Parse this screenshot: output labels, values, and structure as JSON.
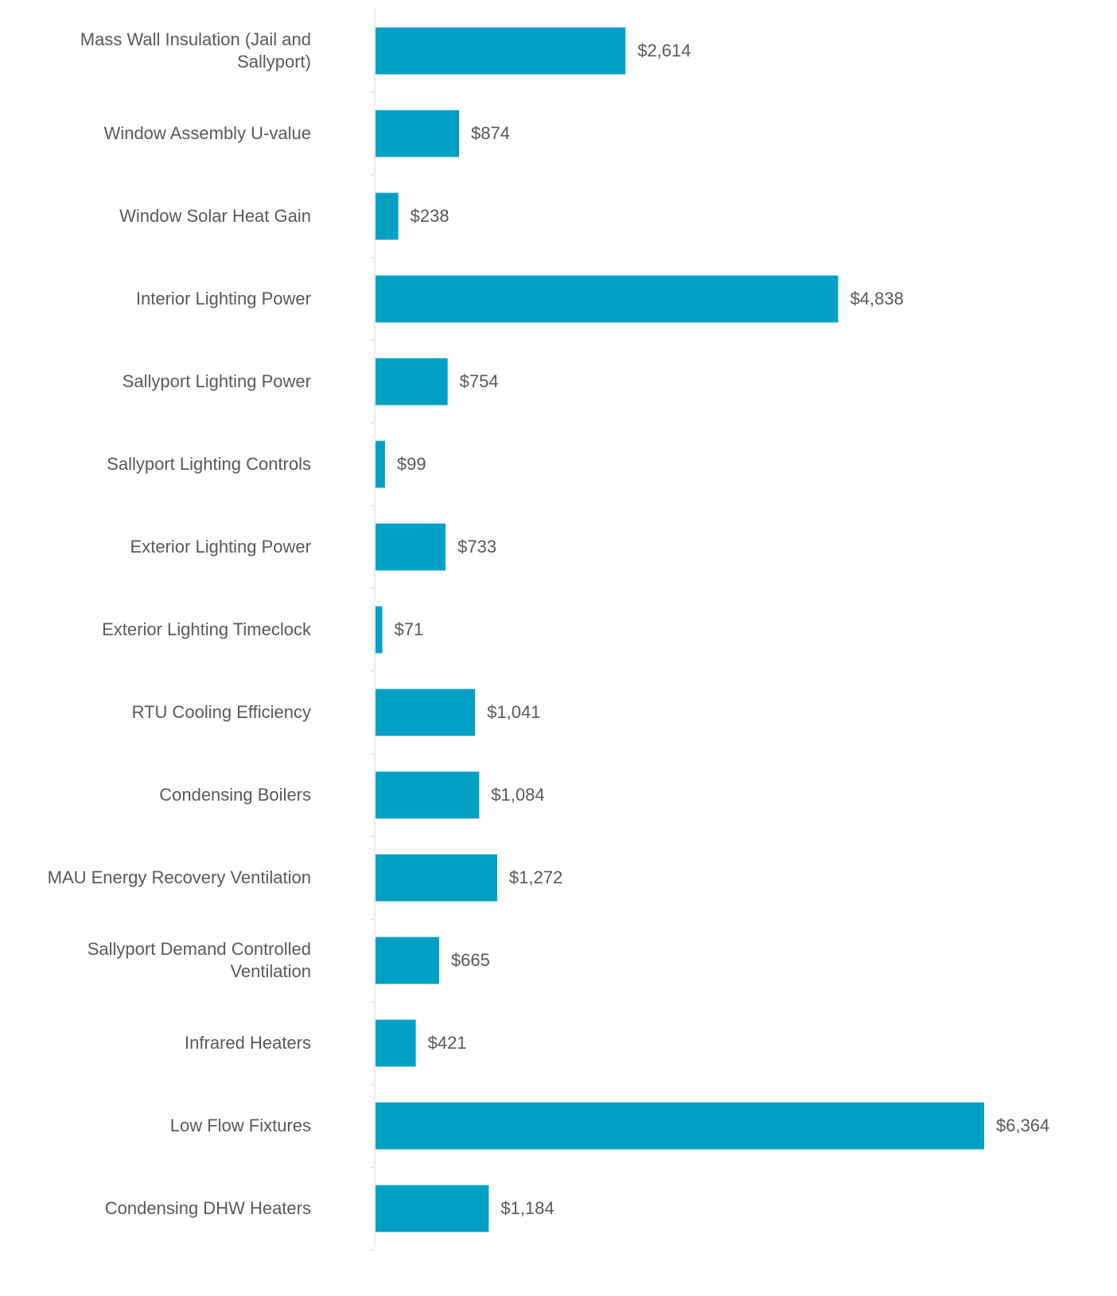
{
  "chart_data": {
    "type": "bar",
    "orientation": "horizontal",
    "categories": [
      "Mass Wall Insulation (Jail and Sallyport)",
      "Window Assembly U-value",
      "Window Solar Heat Gain",
      "Interior Lighting Power",
      "Sallyport Lighting Power",
      "Sallyport Lighting Controls",
      "Exterior Lighting Power",
      "Exterior Lighting Timeclock",
      "RTU Cooling Efficiency",
      "Condensing Boilers",
      "MAU Energy Recovery Ventilation",
      "Sallyport Demand Controlled Ventilation",
      "Infrared Heaters",
      "Low Flow Fixtures",
      "Condensing DHW Heaters"
    ],
    "values": [
      2614,
      874,
      238,
      4838,
      754,
      99,
      733,
      71,
      1041,
      1084,
      1272,
      665,
      421,
      6364,
      1184
    ],
    "value_labels": [
      "$2,614",
      "$874",
      "$238",
      "$4,838",
      "$754",
      "$99",
      "$733",
      "$71",
      "$1,041",
      "$1,084",
      "$1,272",
      "$665",
      "$421",
      "$6,364",
      "$1,184"
    ],
    "color": "#00a0c4"
  }
}
